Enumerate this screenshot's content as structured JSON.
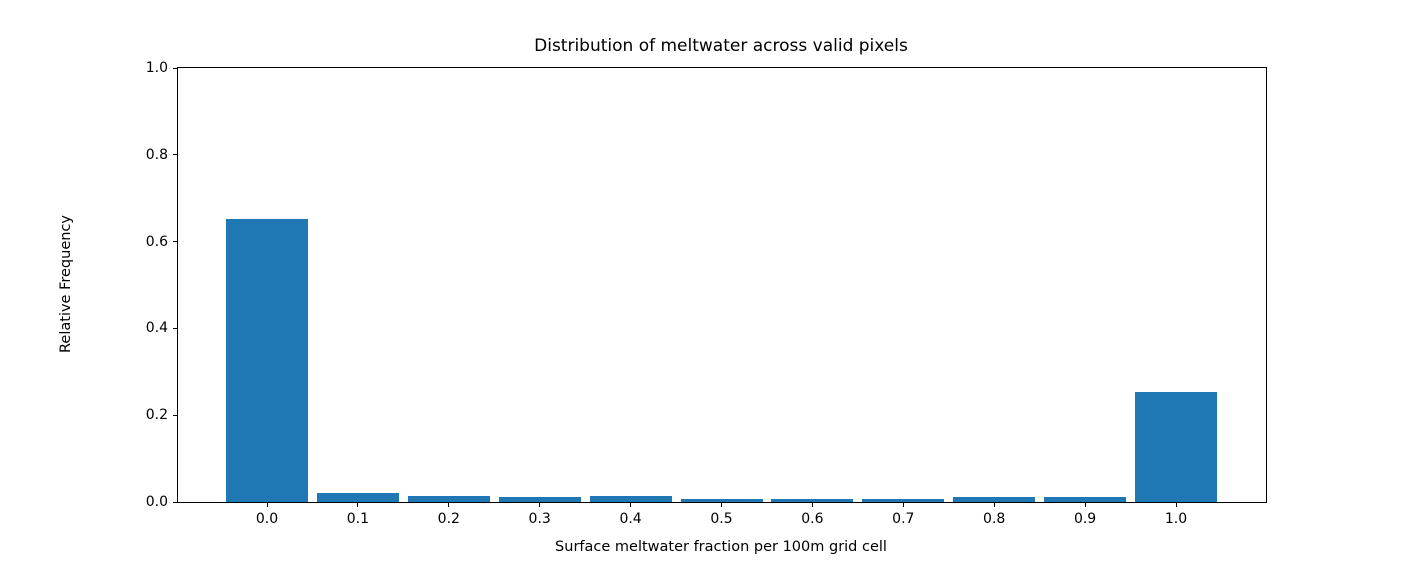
{
  "chart_data": {
    "type": "bar",
    "title": "Distribution of meltwater across valid pixels",
    "xlabel": "Surface meltwater fraction per 100m grid cell",
    "ylabel": "Relative Frequency",
    "categories": [
      "0.0",
      "0.1",
      "0.2",
      "0.3",
      "0.4",
      "0.5",
      "0.6",
      "0.7",
      "0.8",
      "0.9",
      "1.0"
    ],
    "values": [
      0.652,
      0.02,
      0.015,
      0.012,
      0.013,
      0.008,
      0.007,
      0.008,
      0.012,
      0.011,
      0.253
    ],
    "yticks": [
      0.0,
      0.2,
      0.4,
      0.6,
      0.8,
      1.0
    ],
    "ytick_labels": [
      "0.0",
      "0.2",
      "0.4",
      "0.6",
      "0.8",
      "1.0"
    ],
    "ylim": [
      0.0,
      1.0
    ],
    "bar_color": "#1f77b4",
    "axis_color": "#000000",
    "background_color": "#ffffff",
    "grid": false,
    "legend": null
  }
}
